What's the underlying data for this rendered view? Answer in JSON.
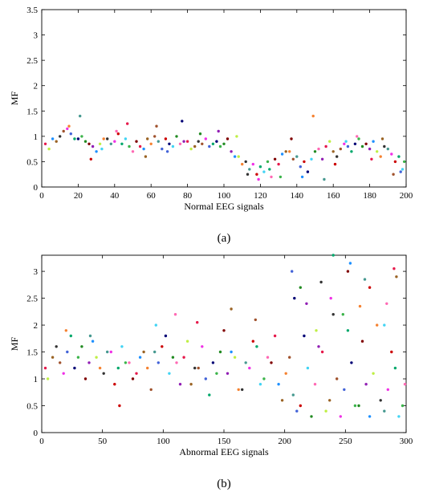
{
  "chart_data": [
    {
      "type": "scatter",
      "panel_label": "(a)",
      "xlabel": "Normal EEG signals",
      "ylabel": "MF",
      "xlim": [
        0,
        200
      ],
      "ylim": [
        0,
        3.5
      ],
      "xticks": [
        0,
        20,
        40,
        60,
        80,
        100,
        120,
        140,
        160,
        180,
        200
      ],
      "yticks": [
        0,
        0.5,
        1,
        1.5,
        2,
        2.5,
        3,
        3.5
      ],
      "ytick_labels": [
        "0",
        "0.5",
        "1",
        "1.5",
        "2",
        "2.5",
        "3",
        "3.5"
      ],
      "grid": false,
      "series": [
        {
          "x": [
            2,
            8,
            12,
            16,
            20,
            24,
            28,
            32,
            36,
            40,
            44,
            48,
            52,
            56,
            60,
            64,
            68,
            72,
            76,
            80,
            84,
            88,
            92,
            96,
            100,
            104,
            108,
            112,
            116,
            120,
            124,
            128,
            132,
            136,
            140,
            144,
            148,
            152,
            156,
            160,
            164,
            168,
            172,
            176,
            180,
            184,
            188,
            192,
            196,
            199
          ],
          "y": [
            0.85,
            0.9,
            1.1,
            1.05,
            0.95,
            0.9,
            0.8,
            0.85,
            0.95,
            0.9,
            0.85,
            0.8,
            0.9,
            0.75,
            0.85,
            0.9,
            0.95,
            0.8,
            0.85,
            0.9,
            0.8,
            0.85,
            0.8,
            0.9,
            0.85,
            0.7,
            0.6,
            0.5,
            0.45,
            0.4,
            0.5,
            0.55,
            0.65,
            0.7,
            0.6,
            0.5,
            0.55,
            0.75,
            0.8,
            0.7,
            0.75,
            0.8,
            0.85,
            0.8,
            0.75,
            0.7,
            0.8,
            0.65,
            0.6,
            0.5
          ]
        },
        {
          "x": [
            4,
            10,
            14,
            18,
            22,
            26,
            30,
            34,
            38,
            42,
            46,
            50,
            54,
            58,
            62,
            66,
            70,
            74,
            78,
            82,
            86,
            90,
            94,
            98,
            102,
            106,
            110,
            114,
            118,
            122,
            126,
            130,
            134,
            138,
            142,
            146,
            150,
            154,
            158,
            162,
            166,
            170,
            174,
            178,
            182,
            186,
            190,
            194,
            198
          ],
          "y": [
            0.75,
            1.0,
            1.15,
            0.95,
            1.0,
            0.85,
            0.7,
            0.95,
            0.85,
            1.05,
            0.95,
            0.7,
            0.8,
            0.95,
            1.0,
            0.75,
            0.85,
            1.0,
            0.9,
            0.75,
            0.9,
            0.95,
            0.85,
            0.8,
            0.95,
            0.6,
            0.45,
            0.35,
            0.25,
            0.3,
            0.2,
            0.45,
            0.7,
            0.55,
            0.4,
            0.3,
            0.7,
            0.55,
            0.9,
            0.6,
            0.85,
            0.7,
            0.95,
            0.85,
            0.9,
            0.6,
            0.75,
            0.5,
            0.35
          ]
        },
        {
          "x": [
            6,
            15,
            21,
            27,
            33,
            41,
            47,
            57,
            63,
            69,
            77,
            87,
            97,
            107,
            113,
            119,
            125,
            131,
            137,
            143,
            149,
            155,
            161,
            167,
            173,
            181,
            187,
            193,
            197
          ],
          "y": [
            0.95,
            1.2,
            1.4,
            0.55,
            0.75,
            1.1,
            1.25,
            0.6,
            1.2,
            0.7,
            1.3,
            1.05,
            1.1,
            1.0,
            0.25,
            0.15,
            0.35,
            0.2,
            0.95,
            0.2,
            1.4,
            0.15,
            0.45,
            0.9,
            1.0,
            0.55,
            0.95,
            0.25,
            0.3
          ]
        }
      ]
    },
    {
      "type": "scatter",
      "panel_label": "(b)",
      "xlabel": "Abnormal EEG signals",
      "ylabel": "MF",
      "xlim": [
        0,
        300
      ],
      "ylim": [
        0,
        3.3
      ],
      "xticks": [
        0,
        50,
        100,
        150,
        200,
        250,
        300
      ],
      "yticks": [
        0,
        0.5,
        1,
        1.5,
        2,
        2.5,
        3
      ],
      "ytick_labels": [
        "0",
        "0.5",
        "1",
        "1.5",
        "2",
        "2.5",
        "3"
      ],
      "grid": false,
      "series": [
        {
          "x": [
            3,
            9,
            15,
            21,
            27,
            33,
            39,
            45,
            51,
            57,
            63,
            69,
            75,
            81,
            87,
            93,
            99,
            105,
            111,
            117,
            123,
            129,
            135,
            141,
            147,
            153,
            159,
            165,
            171,
            177,
            183,
            189,
            195,
            201,
            207,
            213,
            219,
            225,
            231,
            237,
            243,
            249,
            255,
            261,
            267,
            273,
            279,
            285,
            291,
            297
          ],
          "y": [
            1.2,
            1.4,
            1.3,
            1.5,
            1.2,
            1.6,
            1.3,
            1.4,
            1.1,
            1.5,
            1.2,
            1.3,
            1.0,
            1.4,
            1.2,
            1.5,
            1.6,
            1.1,
            1.3,
            1.4,
            0.9,
            1.2,
            1.0,
            1.3,
            1.5,
            1.1,
            1.4,
            0.8,
            1.2,
            1.6,
            1.0,
            1.3,
            0.9,
            1.1,
            0.7,
            0.5,
            1.2,
            0.9,
            1.5,
            0.6,
            1.0,
            0.8,
            1.3,
            0.5,
            0.9,
            1.1,
            0.6,
            0.8,
            1.2,
            0.5
          ]
        },
        {
          "x": [
            5,
            12,
            18,
            24,
            30,
            36,
            42,
            48,
            54,
            60,
            66,
            72,
            78,
            84,
            90,
            96,
            102,
            108,
            114,
            120,
            126,
            132,
            138,
            144,
            150,
            156,
            162,
            168,
            174,
            180,
            186,
            192,
            198,
            204,
            210,
            216,
            222,
            228,
            234,
            240,
            246,
            252,
            258,
            264,
            270,
            276,
            282,
            288,
            294,
            299
          ],
          "y": [
            1.0,
            1.6,
            1.1,
            1.8,
            1.4,
            1.0,
            1.7,
            1.2,
            1.5,
            0.9,
            1.6,
            1.3,
            1.1,
            1.5,
            0.8,
            1.3,
            1.8,
            1.4,
            0.9,
            1.7,
            1.2,
            1.6,
            0.7,
            1.1,
            1.9,
            1.5,
            0.8,
            1.3,
            1.7,
            0.9,
            1.4,
            1.8,
            0.6,
            1.4,
            0.4,
            1.8,
            0.3,
            1.6,
            0.4,
            2.2,
            0.3,
            1.9,
            0.5,
            1.7,
            0.3,
            2.0,
            0.4,
            1.5,
            0.3,
            0.9
          ]
        },
        {
          "x": [
            20,
            40,
            64,
            94,
            110,
            128,
            156,
            176,
            206,
            208,
            213,
            218,
            226,
            230,
            238,
            240,
            248,
            252,
            254,
            262,
            266,
            270,
            282,
            284,
            290,
            292
          ],
          "y": [
            1.9,
            1.8,
            0.5,
            2.0,
            2.2,
            2.05,
            2.3,
            2.1,
            3.0,
            2.5,
            2.7,
            2.4,
            1.9,
            2.8,
            2.5,
            3.3,
            2.2,
            3.0,
            3.15,
            2.35,
            2.85,
            2.7,
            2.0,
            2.4,
            3.05,
            2.9
          ]
        }
      ]
    }
  ]
}
